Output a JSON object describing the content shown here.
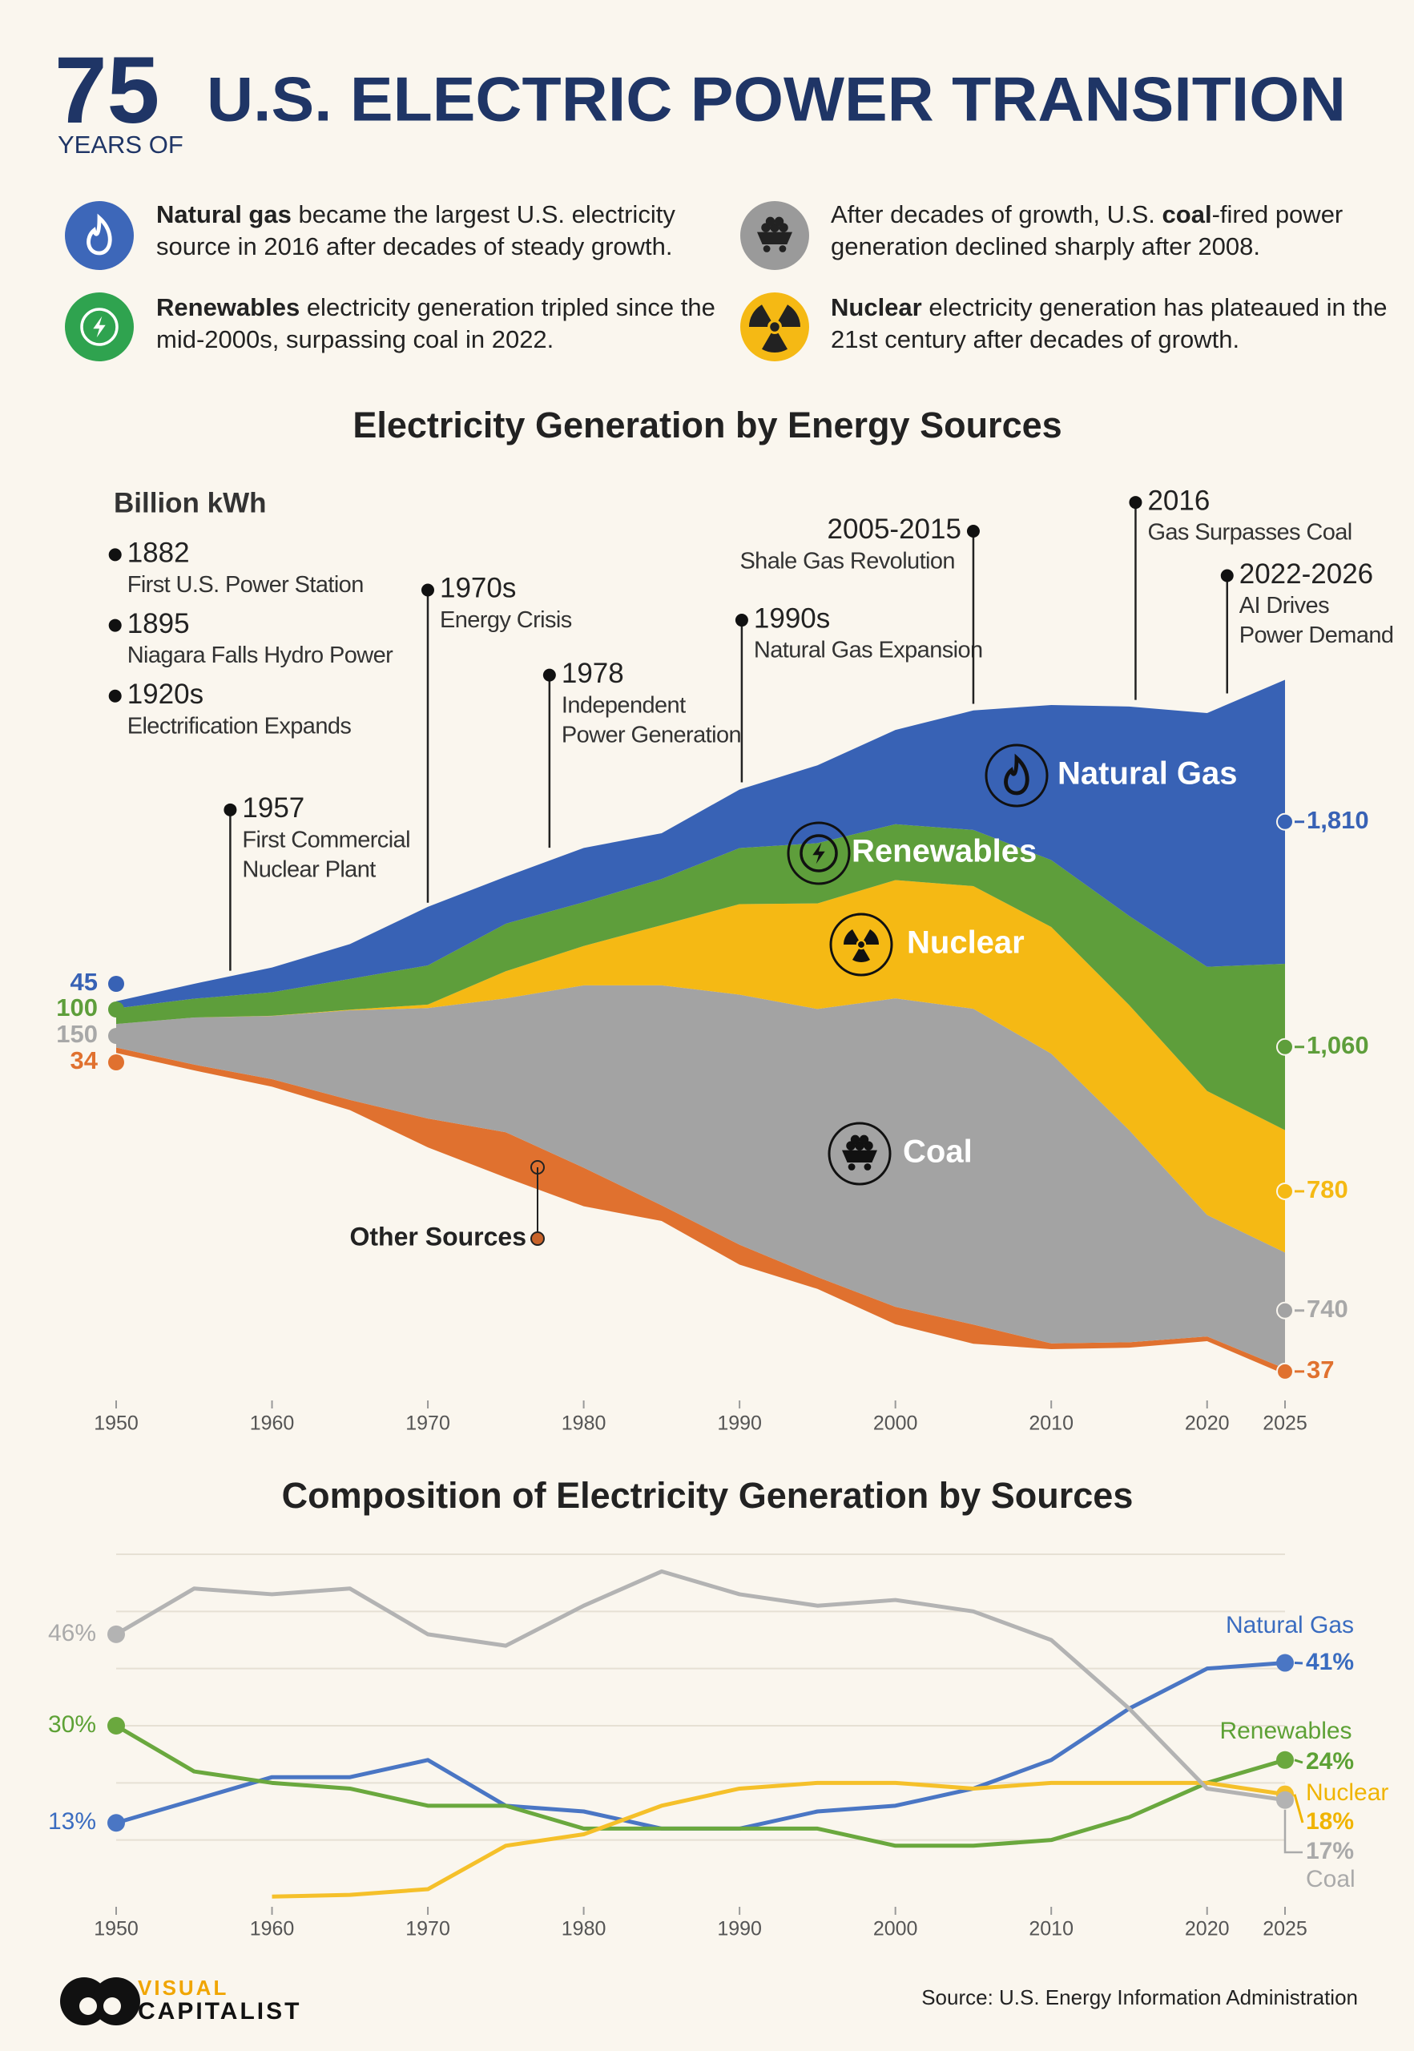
{
  "header": {
    "number": "75",
    "prefix": "YEARS OF",
    "title": "U.S. ELECTRIC POWER TRANSITION"
  },
  "highlights": [
    {
      "parts": [
        {
          "text": "Natural gas",
          "bold": true
        },
        {
          "text": " became the largest U.S. electricity source in 2016 after decades of steady growth.",
          "bold": false
        }
      ]
    },
    {
      "parts": [
        {
          "text": "After decades of growth, U.S. ",
          "bold": false
        },
        {
          "text": "coal",
          "bold": true
        },
        {
          "text": "-fired power generation declined sharply after 2008.",
          "bold": false
        }
      ]
    },
    {
      "parts": [
        {
          "text": "Renewables",
          "bold": true
        },
        {
          "text": " electricity generation tripled since the mid-2000s, surpassing coal in 2022.",
          "bold": false
        }
      ]
    },
    {
      "parts": [
        {
          "text": "Nuclear",
          "bold": true
        },
        {
          "text": " electricity generation has plateaued in the 21st century after decades of growth.",
          "bold": false
        }
      ]
    }
  ],
  "chart_data": [
    {
      "type": "stream",
      "title": "Electricity Generation by Energy Sources",
      "y_label": "Billion kWh",
      "x": [
        1950,
        1955,
        1960,
        1965,
        1970,
        1975,
        1980,
        1985,
        1990,
        1995,
        2000,
        2005,
        2010,
        2015,
        2020,
        2025
      ],
      "xlim": [
        1950,
        2025
      ],
      "xticks": [
        1950,
        1960,
        1970,
        1980,
        1990,
        2000,
        2010,
        2020,
        2025
      ],
      "ylim": [
        -2400,
        2400
      ],
      "series": [
        {
          "name": "Other Sources",
          "color": "#e0712f",
          "values": [
            34,
            37,
            48,
            65,
            184,
            289,
            246,
            100,
            127,
            75,
            111,
            122,
            37,
            35,
            30,
            37
          ]
        },
        {
          "name": "Coal",
          "color": "#a3a3a3",
          "values": [
            150,
            300,
            403,
            571,
            704,
            853,
            1162,
            1402,
            1594,
            1709,
            1966,
            2013,
            1847,
            1352,
            774,
            740
          ]
        },
        {
          "name": "Nuclear",
          "color": "#f5b914",
          "values": [
            0,
            0,
            1,
            4,
            22,
            173,
            251,
            384,
            577,
            673,
            754,
            782,
            807,
            797,
            790,
            780
          ]
        },
        {
          "name": "Renewables",
          "color": "#5e9e3b",
          "values": [
            100,
            120,
            150,
            196,
            250,
            303,
            279,
            294,
            357,
            384,
            356,
            358,
            427,
            568,
            792,
            1060
          ],
          "value_labels": [
            null,
            null,
            null,
            null,
            null,
            null,
            null,
            null,
            null,
            null,
            null,
            null,
            null,
            null,
            null,
            "1,060"
          ]
        },
        {
          "name": "Natural Gas",
          "color": "#3862b5",
          "values": [
            45,
            95,
            158,
            222,
            373,
            300,
            346,
            292,
            373,
            496,
            601,
            761,
            988,
            1335,
            1617,
            1810
          ],
          "value_labels": [
            null,
            null,
            null,
            null,
            null,
            null,
            null,
            null,
            null,
            null,
            null,
            null,
            null,
            null,
            null,
            "1,810"
          ]
        }
      ],
      "annotations": [
        {
          "label": "1882",
          "text": [
            "First U.S. Power Station"
          ]
        },
        {
          "label": "1895",
          "text": [
            "Niagara Falls Hydro Power"
          ]
        },
        {
          "label": "1920s",
          "text": [
            "Electrification Expands"
          ]
        },
        {
          "label": "1957",
          "text": [
            "First Commercial",
            "Nuclear Plant"
          ]
        },
        {
          "label": "1970s",
          "text": [
            "Energy Crisis"
          ]
        },
        {
          "label": "1978",
          "text": [
            "Independent",
            "Power Generation"
          ]
        },
        {
          "label": "1990s",
          "text": [
            "Natural Gas Expansion"
          ]
        },
        {
          "label": "2005-2015",
          "text": [
            "Shale Gas Revolution"
          ]
        },
        {
          "label": "2016",
          "text": [
            "Gas Surpasses Coal"
          ]
        },
        {
          "label": "2022-2026",
          "text": [
            "AI Drives",
            "Power Demand"
          ]
        }
      ]
    },
    {
      "type": "line",
      "title": "Composition of Electricity Generation by Sources",
      "x": [
        1950,
        1955,
        1960,
        1965,
        1970,
        1975,
        1980,
        1985,
        1990,
        1995,
        2000,
        2005,
        2010,
        2015,
        2020,
        2025
      ],
      "xlim": [
        1950,
        2025
      ],
      "xticks": [
        1950,
        1960,
        1970,
        1980,
        1990,
        2000,
        2010,
        2020,
        2025
      ],
      "ylim": [
        0,
        60
      ],
      "ygrid": [
        10,
        20,
        30,
        40,
        50,
        60
      ],
      "series": [
        {
          "name": "Natural Gas",
          "color": "#4a76c4",
          "values": [
            13,
            17,
            21,
            21,
            24,
            16,
            15,
            12,
            12,
            15,
            16,
            19,
            24,
            33,
            40,
            41
          ],
          "value_labels": [
            "13%",
            null,
            null,
            null,
            null,
            null,
            null,
            null,
            null,
            null,
            null,
            null,
            null,
            null,
            null,
            "41%"
          ]
        },
        {
          "name": "Renewables",
          "color": "#6aa83e",
          "values": [
            30,
            22,
            20,
            19,
            16,
            16,
            12,
            12,
            12,
            12,
            9,
            9,
            10,
            14,
            20,
            24
          ],
          "value_labels": [
            "30%",
            null,
            null,
            null,
            null,
            null,
            null,
            null,
            null,
            null,
            null,
            null,
            null,
            null,
            null,
            "24%"
          ]
        },
        {
          "name": "Nuclear",
          "color": "#f5c02a",
          "values": [
            null,
            null,
            0.1,
            0.4,
            1.4,
            9,
            11,
            16,
            19,
            20,
            20,
            19,
            20,
            20,
            20,
            18
          ],
          "value_labels": [
            null,
            null,
            null,
            null,
            null,
            null,
            null,
            null,
            null,
            null,
            null,
            null,
            null,
            null,
            null,
            "18%"
          ]
        },
        {
          "name": "Coal",
          "color": "#b3b3b3",
          "values": [
            46,
            54,
            53,
            54,
            46,
            44,
            51,
            57,
            53,
            51,
            52,
            50,
            45,
            33,
            19,
            17
          ],
          "value_labels": [
            "46%",
            null,
            null,
            null,
            null,
            null,
            null,
            null,
            null,
            null,
            null,
            null,
            null,
            null,
            null,
            "17%"
          ]
        }
      ]
    }
  ],
  "footer": {
    "logo_top": "VISUAL",
    "logo_bottom": "CAPITALIST",
    "source": "Source: U.S. Energy Information Administration"
  }
}
